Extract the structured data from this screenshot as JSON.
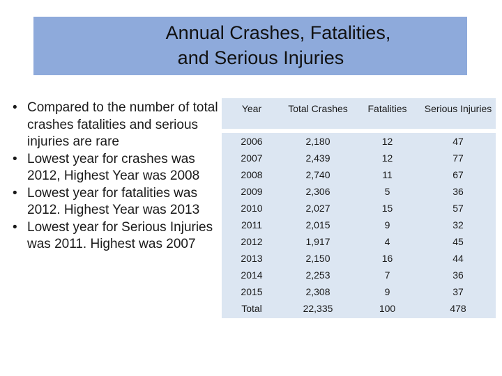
{
  "slide": {
    "title_line1": "Annual Crashes, Fatalities,",
    "title_line2": "and Serious Injuries"
  },
  "bullets": [
    "Compared to the number of total crashes fatalities and serious injuries are rare",
    "Lowest year for crashes was 2012, Highest Year was 2008",
    "Lowest year for fatalities was 2012. Highest Year was 2013",
    "Lowest year for Serious Injuries was 2011. Highest was 2007"
  ],
  "table": {
    "headers": [
      "Year",
      "Total Crashes",
      "Fatalities",
      "Serious Injuries"
    ],
    "rows": [
      [
        "2006",
        "2,180",
        "12",
        "47"
      ],
      [
        "2007",
        "2,439",
        "12",
        "77"
      ],
      [
        "2008",
        "2,740",
        "11",
        "67"
      ],
      [
        "2009",
        "2,306",
        "5",
        "36"
      ],
      [
        "2010",
        "2,027",
        "15",
        "57"
      ],
      [
        "2011",
        "2,015",
        "9",
        "32"
      ],
      [
        "2012",
        "1,917",
        "4",
        "45"
      ],
      [
        "2013",
        "2,150",
        "16",
        "44"
      ],
      [
        "2014",
        "2,253",
        "7",
        "36"
      ],
      [
        "2015",
        "2,308",
        "9",
        "37"
      ],
      [
        "Total",
        "22,335",
        "100",
        "478"
      ]
    ]
  },
  "colors": {
    "title_bg": "#8eaadb",
    "table_bg": "#dce6f2"
  }
}
